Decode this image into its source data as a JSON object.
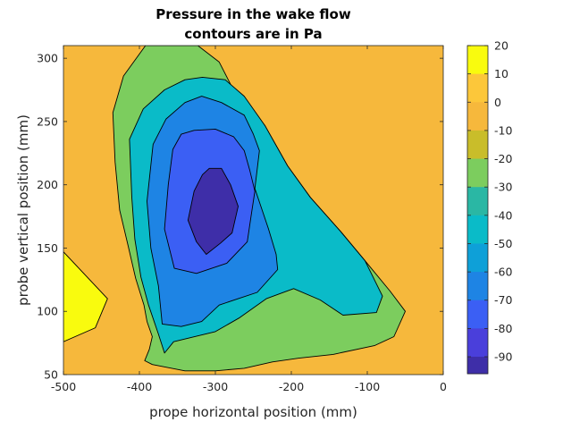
{
  "chart_data": {
    "type": "contour",
    "title_lines": [
      "Pressure in the wake flow",
      "contours are in Pa"
    ],
    "xlabel": "prope horizontal position (mm)",
    "ylabel": "probe vertical position (mm)",
    "xlim": [
      -500,
      0
    ],
    "ylim": [
      50,
      310
    ],
    "x_ticks": [
      -500,
      -400,
      -300,
      -200,
      -100,
      0
    ],
    "x_tick_labels": [
      "-500",
      "-400",
      "-300",
      "-200",
      "-100",
      "0"
    ],
    "y_ticks": [
      50,
      100,
      150,
      200,
      250,
      300
    ],
    "y_tick_labels": [
      "50",
      "100",
      "150",
      "200",
      "250",
      "300"
    ],
    "grid": false,
    "background_color": "#f6b83c",
    "colorbar": {
      "location": "right",
      "range": [
        -96,
        20
      ],
      "ticks": [
        20,
        10,
        0,
        -10,
        -20,
        -30,
        -40,
        -50,
        -60,
        -70,
        -80,
        -90
      ],
      "tick_labels": [
        "20",
        "10",
        "0",
        "-10",
        "-20",
        "-30",
        "-40",
        "-50",
        "-60",
        "-70",
        "-80",
        "-90"
      ],
      "bands": [
        {
          "from": 10,
          "to": 20,
          "color": "#f9fb0e"
        },
        {
          "from": 0,
          "to": 10,
          "color": "#fcc73a"
        },
        {
          "from": -10,
          "to": 0,
          "color": "#f6b83c"
        },
        {
          "from": -20,
          "to": -10,
          "color": "#c9bd2a"
        },
        {
          "from": -30,
          "to": -20,
          "color": "#7ccd5e"
        },
        {
          "from": -40,
          "to": -30,
          "color": "#2ab7a4"
        },
        {
          "from": -50,
          "to": -40,
          "color": "#0abbc8"
        },
        {
          "from": -60,
          "to": -50,
          "color": "#0ea0d8"
        },
        {
          "from": -70,
          "to": -60,
          "color": "#1e84e4"
        },
        {
          "from": -80,
          "to": -70,
          "color": "#3b5ff4"
        },
        {
          "from": -90,
          "to": -80,
          "color": "#4a3fdb"
        },
        {
          "from": -96,
          "to": -90,
          "color": "#3e2ea8"
        }
      ]
    },
    "contours": [
      {
        "level": 10,
        "color": "#f9fb0e",
        "points": [
          [
            -500,
            147
          ],
          [
            -442,
            110
          ],
          [
            -458,
            87
          ],
          [
            -500,
            76
          ]
        ]
      },
      {
        "level": -20,
        "color": "#7ccd5e",
        "points": [
          [
            -392,
            310
          ],
          [
            -323,
            310
          ],
          [
            -295,
            297
          ],
          [
            -272,
            270
          ],
          [
            -235,
            247
          ],
          [
            -205,
            215
          ],
          [
            -175,
            190
          ],
          [
            -135,
            163
          ],
          [
            -103,
            140
          ],
          [
            -70,
            116
          ],
          [
            -50,
            100
          ],
          [
            -65,
            80
          ],
          [
            -90,
            73
          ],
          [
            -145,
            66
          ],
          [
            -190,
            63
          ],
          [
            -225,
            60
          ],
          [
            -262,
            55
          ],
          [
            -300,
            53
          ],
          [
            -340,
            53
          ],
          [
            -383,
            58
          ],
          [
            -393,
            61
          ],
          [
            -387,
            70
          ],
          [
            -383,
            80
          ],
          [
            -390,
            92
          ],
          [
            -394,
            105
          ],
          [
            -405,
            126
          ],
          [
            -415,
            152
          ],
          [
            -426,
            180
          ],
          [
            -432,
            218
          ],
          [
            -435,
            257
          ],
          [
            -421,
            286
          ]
        ]
      },
      {
        "level": -40,
        "color": "#0abbc8",
        "points": [
          [
            -340,
            283
          ],
          [
            -317,
            285
          ],
          [
            -287,
            283
          ],
          [
            -262,
            270
          ],
          [
            -235,
            247
          ],
          [
            -205,
            215
          ],
          [
            -175,
            190
          ],
          [
            -135,
            163
          ],
          [
            -103,
            140
          ],
          [
            -80,
            112
          ],
          [
            -88,
            99
          ],
          [
            -132,
            97
          ],
          [
            -162,
            109
          ],
          [
            -197,
            118
          ],
          [
            -233,
            110
          ],
          [
            -268,
            95
          ],
          [
            -300,
            84
          ],
          [
            -355,
            76
          ],
          [
            -367,
            67
          ],
          [
            -375,
            82
          ],
          [
            -388,
            105
          ],
          [
            -398,
            127
          ],
          [
            -406,
            157
          ],
          [
            -410,
            190
          ],
          [
            -413,
            236
          ],
          [
            -395,
            260
          ],
          [
            -367,
            275
          ]
        ]
      },
      {
        "level": -60,
        "color": "#1e84e4",
        "points": [
          [
            -318,
            270
          ],
          [
            -292,
            265
          ],
          [
            -262,
            255
          ],
          [
            -250,
            240
          ],
          [
            -242,
            227
          ],
          [
            -248,
            197
          ],
          [
            -230,
            165
          ],
          [
            -220,
            145
          ],
          [
            -218,
            133
          ],
          [
            -245,
            115
          ],
          [
            -270,
            110
          ],
          [
            -295,
            105
          ],
          [
            -318,
            92
          ],
          [
            -345,
            88
          ],
          [
            -370,
            90
          ],
          [
            -375,
            120
          ],
          [
            -385,
            150
          ],
          [
            -390,
            187
          ],
          [
            -382,
            232
          ],
          [
            -365,
            252
          ],
          [
            -340,
            265
          ]
        ]
      },
      {
        "level": -80,
        "color": "#3b5ff4",
        "points": [
          [
            -328,
            243
          ],
          [
            -300,
            244
          ],
          [
            -276,
            238
          ],
          [
            -262,
            227
          ],
          [
            -255,
            212
          ],
          [
            -248,
            195
          ],
          [
            -253,
            175
          ],
          [
            -258,
            155
          ],
          [
            -285,
            138
          ],
          [
            -325,
            130
          ],
          [
            -354,
            134
          ],
          [
            -367,
            165
          ],
          [
            -362,
            200
          ],
          [
            -356,
            228
          ],
          [
            -345,
            240
          ]
        ]
      },
      {
        "level": -90,
        "color": "#3e2ea8",
        "points": [
          [
            -308,
            213
          ],
          [
            -292,
            213
          ],
          [
            -280,
            200
          ],
          [
            -270,
            183
          ],
          [
            -278,
            162
          ],
          [
            -293,
            154
          ],
          [
            -312,
            145
          ],
          [
            -325,
            155
          ],
          [
            -336,
            172
          ],
          [
            -328,
            195
          ],
          [
            -317,
            208
          ]
        ]
      }
    ]
  }
}
